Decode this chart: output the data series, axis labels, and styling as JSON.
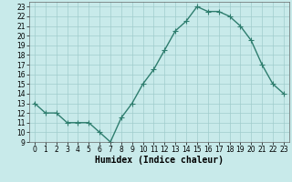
{
  "x": [
    0,
    1,
    2,
    3,
    4,
    5,
    6,
    7,
    8,
    9,
    10,
    11,
    12,
    13,
    14,
    15,
    16,
    17,
    18,
    19,
    20,
    21,
    22,
    23
  ],
  "y": [
    13,
    12,
    12,
    11,
    11,
    11,
    10,
    9,
    11.5,
    13,
    15,
    16.5,
    18.5,
    20.5,
    21.5,
    23,
    22.5,
    22.5,
    22,
    21,
    19.5,
    17,
    15,
    14
  ],
  "line_color": "#2e7d6e",
  "marker": "+",
  "marker_size": 4,
  "marker_color": "#2e7d6e",
  "background_color": "#c8eaea",
  "grid_color": "#a0cccc",
  "xlabel": "Humidex (Indice chaleur)",
  "xlim": [
    -0.5,
    23.5
  ],
  "ylim": [
    9,
    23.5
  ],
  "yticks": [
    9,
    10,
    11,
    12,
    13,
    14,
    15,
    16,
    17,
    18,
    19,
    20,
    21,
    22,
    23
  ],
  "xticks": [
    0,
    1,
    2,
    3,
    4,
    5,
    6,
    7,
    8,
    9,
    10,
    11,
    12,
    13,
    14,
    15,
    16,
    17,
    18,
    19,
    20,
    21,
    22,
    23
  ],
  "tick_fontsize": 5.5,
  "label_fontsize": 7,
  "line_width": 1.0
}
